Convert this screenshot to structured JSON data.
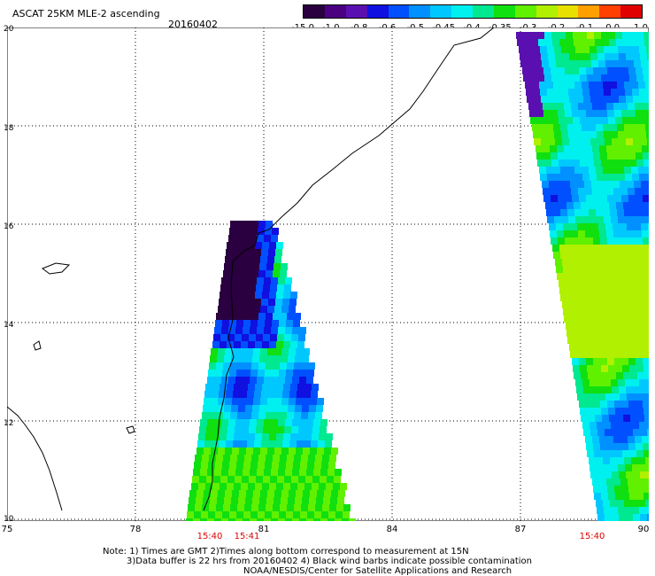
{
  "header": {
    "title": "ASCAT 25KM MLE-2 ascending",
    "date": "20160402"
  },
  "colorbar": {
    "labels": [
      "-15.0",
      "-1.0",
      "-0.8",
      "-0.6",
      "-0.5",
      "-0.45",
      "-0.4",
      "-0.35",
      "-0.3",
      "-0.2",
      "-0.1",
      "0.0",
      "1.0"
    ],
    "colors": [
      "#2a0040",
      "#4a0080",
      "#5a10b0",
      "#1010e0",
      "#0050ff",
      "#0090ff",
      "#00c8ff",
      "#00f0f0",
      "#00e890",
      "#10e010",
      "#60f000",
      "#b0f000",
      "#e8e000",
      "#ffa000",
      "#ff4000",
      "#e00000"
    ]
  },
  "axes": {
    "y_ticks": [
      "20",
      "18",
      "16",
      "14",
      "12",
      "10"
    ],
    "x_ticks": [
      "75",
      "78",
      "81",
      "84",
      "87",
      "90"
    ]
  },
  "times": [
    "15:40",
    "15:41",
    "15:40"
  ],
  "notes": {
    "line1": "Note: 1) Times are GMT 2)Times along bottom correspond to measurement at 15N",
    "line2": "3)Data buffer is 22 hrs from 20160402 4) Black wind barbs indicate possible contamination",
    "line3": "NOAA/NESDIS/Center for Satellite Applications and Research"
  }
}
